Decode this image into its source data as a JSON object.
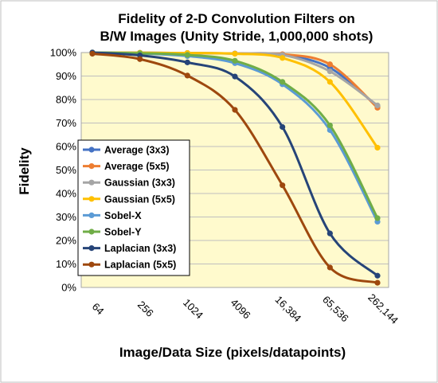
{
  "chart_data": {
    "type": "line",
    "title_lines": [
      "Fidelity of 2-D Convolution Filters on",
      "B/W Images (Unity Stride, 1,000,000 shots)"
    ],
    "xlabel": "Image/Data Size (pixels/datapoints)",
    "ylabel": "Fidelity",
    "categories": [
      "64",
      "256",
      "1024",
      "4096",
      "16,384",
      "65,536",
      "262,144"
    ],
    "y_ticks": [
      "0%",
      "10%",
      "20%",
      "30%",
      "40%",
      "50%",
      "60%",
      "70%",
      "80%",
      "90%",
      "100%"
    ],
    "ylim": [
      0,
      100
    ],
    "grid": "horizontal",
    "legend_position": "center-left",
    "plot_background": "#FFFACD",
    "series": [
      {
        "name": "Average (3x3)",
        "color": "#4472C4",
        "values": [
          100,
          99.9,
          99.8,
          99.6,
          99,
          93.5,
          77
        ]
      },
      {
        "name": "Average (5x5)",
        "color": "#ED7D31",
        "values": [
          100,
          99.9,
          99.8,
          99.6,
          99.3,
          95,
          76.5
        ]
      },
      {
        "name": "Gaussian (3x3)",
        "color": "#A5A5A5",
        "values": [
          100,
          99.9,
          99.8,
          99.6,
          99,
          92,
          77.5
        ]
      },
      {
        "name": "Gaussian (5x5)",
        "color": "#FFC000",
        "values": [
          100,
          99.9,
          99.8,
          99.5,
          97.7,
          87.5,
          59.5
        ]
      },
      {
        "name": "Sobel-X",
        "color": "#5B9BD5",
        "values": [
          100,
          99.6,
          98.5,
          95.5,
          86.5,
          67,
          28
        ]
      },
      {
        "name": "Sobel-Y",
        "color": "#70AD47",
        "values": [
          100,
          99.7,
          99,
          96.5,
          87.5,
          69,
          29.5
        ]
      },
      {
        "name": "Laplacian (3x3)",
        "color": "#264478",
        "values": [
          100,
          98.8,
          95.8,
          89.8,
          68.3,
          23,
          5
        ]
      },
      {
        "name": "Laplacian (5x5)",
        "color": "#9E480E",
        "values": [
          99.5,
          97.2,
          90.2,
          75.6,
          43.5,
          8.5,
          2
        ]
      }
    ]
  }
}
